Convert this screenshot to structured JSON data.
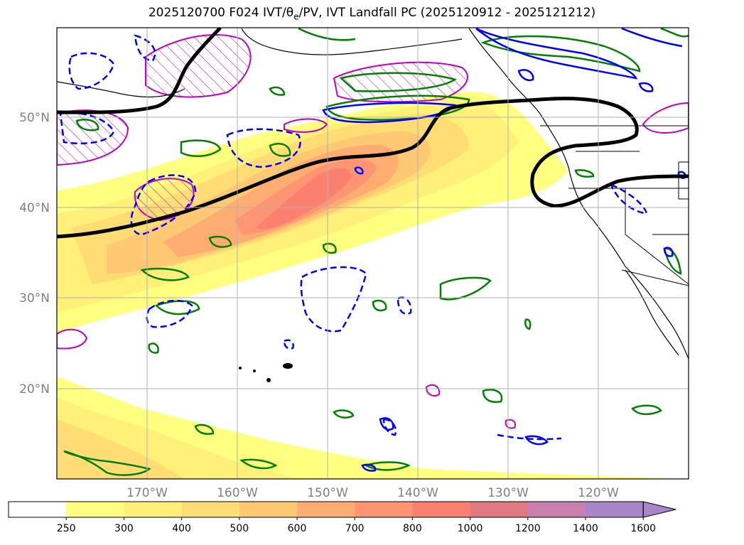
{
  "title": {
    "prefix": "2025120700 F024 IVT/θ",
    "subscript": "e",
    "suffix": "/PV, IVT Landfall PC (2025120912 - 2025121212)"
  },
  "map": {
    "lat_ticks": [
      "50°N",
      "40°N",
      "30°N",
      "20°N"
    ],
    "lon_ticks": [
      "170°W",
      "160°W",
      "150°W",
      "140°W",
      "130°W",
      "120°W"
    ],
    "extent": {
      "lon_min": -180,
      "lon_max": -110,
      "lat_min": 10,
      "lat_max": 60
    },
    "grid": true
  },
  "colorbar": {
    "labels": [
      "250",
      "300",
      "400",
      "500",
      "600",
      "700",
      "800",
      "1000",
      "1200",
      "1400",
      "1600"
    ],
    "colors": [
      "#ffffff",
      "#ffff80",
      "#fff07a",
      "#ffdd74",
      "#ffc872",
      "#ffac72",
      "#ff9572",
      "#fb8070",
      "#e07a80",
      "#c980b0",
      "#a985c9"
    ],
    "extend": "max"
  },
  "contours": {
    "pv_color": "#0000ff",
    "theta_color": "#008000",
    "pc_color": "#000000",
    "hatch_color": "#c000c0"
  }
}
